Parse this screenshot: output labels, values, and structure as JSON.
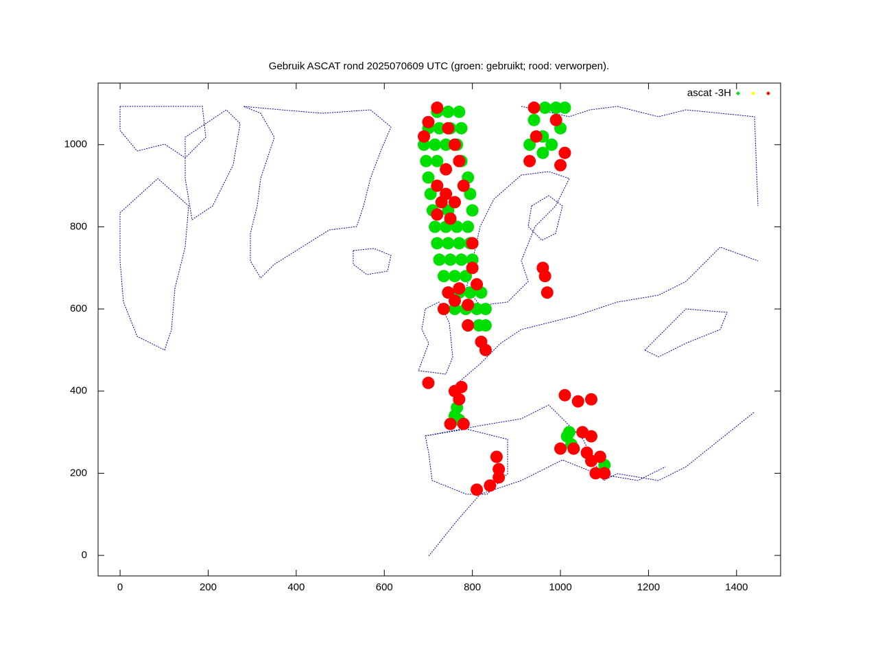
{
  "chart_data": {
    "type": "scatter",
    "title": "Gebruik ASCAT rond 2025070609 UTC (groen: gebruikt; rood: verworpen).",
    "xlim": [
      -50,
      1500
    ],
    "ylim": [
      -50,
      1150
    ],
    "xticks": [
      0,
      200,
      400,
      600,
      800,
      1000,
      1200,
      1400
    ],
    "yticks": [
      0,
      200,
      400,
      600,
      800,
      1000
    ],
    "legend": "top-right",
    "series": [
      {
        "name": "ascat -3H",
        "color": "#00e000",
        "x": [
          720,
          745,
          770,
          700,
          725,
          750,
          775,
          690,
          715,
          740,
          765,
          695,
          720,
          775,
          700,
          790,
          705,
          795,
          710,
          745,
          800,
          715,
          740,
          765,
          790,
          720,
          745,
          770,
          795,
          725,
          750,
          775,
          800,
          735,
          760,
          785,
          745,
          770,
          795,
          820,
          760,
          785,
          810,
          830,
          790,
          815,
          830,
          940,
          960,
          980,
          960,
          1000,
          1010,
          990,
          965,
          930,
          760,
          765,
          770,
          1015,
          1025,
          1020,
          1100
        ],
        "values": [
          1080,
          1080,
          1080,
          1040,
          1040,
          1040,
          1040,
          1000,
          1000,
          1000,
          1000,
          960,
          960,
          960,
          920,
          920,
          880,
          880,
          840,
          840,
          840,
          800,
          800,
          800,
          800,
          760,
          760,
          760,
          760,
          720,
          720,
          720,
          720,
          680,
          680,
          680,
          640,
          640,
          640,
          640,
          600,
          600,
          600,
          600,
          560,
          560,
          560,
          1060,
          1020,
          1000,
          980,
          1040,
          1090,
          1090,
          1090,
          1000,
          340,
          360,
          330,
          290,
          270,
          300,
          220
        ]
      },
      {
        "color": "#ffff00",
        "x": [],
        "values": []
      },
      {
        "color": "#ff0000",
        "x": [
          720,
          690,
          700,
          745,
          760,
          770,
          740,
          720,
          740,
          760,
          730,
          750,
          720,
          780,
          800,
          810,
          790,
          770,
          790,
          820,
          830,
          760,
          735,
          745,
          800,
          945,
          1000,
          1010,
          930,
          990,
          940,
          965,
          970,
          960,
          760,
          775,
          770,
          780,
          750,
          810,
          840,
          860,
          860,
          1010,
          1040,
          1070,
          1050,
          1070,
          1030,
          1000,
          1060,
          1070,
          1080,
          1100,
          1090,
          855,
          700
        ],
        "values": [
          1090,
          1020,
          1055,
          1040,
          1000,
          960,
          940,
          900,
          880,
          860,
          860,
          820,
          830,
          900,
          700,
          660,
          610,
          650,
          560,
          520,
          500,
          620,
          600,
          640,
          760,
          1020,
          950,
          980,
          960,
          1060,
          1090,
          680,
          640,
          700,
          400,
          410,
          380,
          320,
          320,
          160,
          170,
          190,
          210,
          390,
          375,
          380,
          300,
          290,
          260,
          260,
          250,
          230,
          200,
          200,
          240,
          240,
          420
        ]
      }
    ]
  }
}
